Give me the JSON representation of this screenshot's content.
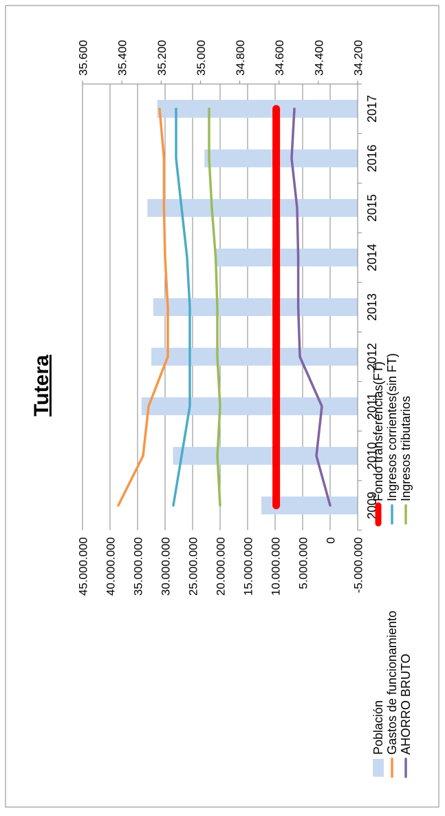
{
  "chart_data": {
    "type": "bar",
    "title": "Tutera",
    "categories": [
      "2009",
      "2010",
      "2011",
      "2012",
      "2013",
      "2014",
      "2015",
      "2016",
      "2017"
    ],
    "y_left": {
      "min": -5000000,
      "max": 45000000,
      "ticks": [
        -5000000,
        0,
        5000000,
        10000000,
        15000000,
        20000000,
        25000000,
        30000000,
        35000000,
        40000000,
        45000000
      ],
      "tick_labels": [
        "-5.000.000",
        "0",
        "5.000.000",
        "10.000.000",
        "15.000.000",
        "20.000.000",
        "25.000.000",
        "30.000.000",
        "35.000.000",
        "40.000.000",
        "45.000.000"
      ]
    },
    "y_right": {
      "min": 34200,
      "max": 35600,
      "ticks": [
        34200,
        34400,
        34600,
        34800,
        35000,
        35200,
        35400,
        35600
      ],
      "tick_labels": [
        "34.200",
        "34.400",
        "34.600",
        "34.800",
        "35.000",
        "35.200",
        "35.400",
        "35.600"
      ]
    },
    "grid": true,
    "legend_position": "bottom",
    "bars": {
      "name": "Población",
      "axis": "right",
      "color": "#c6d9f1",
      "values": [
        34690,
        35140,
        35300,
        35250,
        35240,
        34920,
        35270,
        34980,
        35220
      ]
    },
    "series": [
      {
        "name": "Fondo transferencias(FT)",
        "axis": "left",
        "color": "#ff0000",
        "width": "thick",
        "values": [
          9800000,
          9800000,
          9800000,
          9800000,
          9800000,
          9800000,
          9800000,
          9800000,
          9800000
        ]
      },
      {
        "name": "Gastos de funcionamiento",
        "axis": "left",
        "color": "#f79646",
        "values": [
          38500000,
          34000000,
          33000000,
          29500000,
          29500000,
          30000000,
          30200000,
          30200000,
          31000000
        ]
      },
      {
        "name": "Ingresos corrientes(sin FT)",
        "axis": "left",
        "color": "#4bacc6",
        "values": [
          28500000,
          27000000,
          25500000,
          25500000,
          25500000,
          26000000,
          27000000,
          28000000,
          28000000
        ]
      },
      {
        "name": "AHORRO BRUTO",
        "axis": "left",
        "color": "#8064a2",
        "values": [
          0,
          2500000,
          1500000,
          5500000,
          5800000,
          5800000,
          6000000,
          7000000,
          6500000
        ]
      },
      {
        "name": "Ingresos tributarios",
        "axis": "left",
        "color": "#9bbb59",
        "values": [
          20000000,
          20500000,
          20000000,
          20500000,
          20500000,
          20800000,
          21500000,
          22000000,
          22000000
        ]
      }
    ],
    "legend_entries": [
      {
        "name": "Población",
        "marker": "box",
        "color": "#c6d9f1"
      },
      {
        "name": "Fondo transferencias(FT)",
        "marker": "line",
        "color": "#ff0000"
      },
      {
        "name": "Gastos de funcionamiento",
        "marker": "line",
        "color": "#f79646"
      },
      {
        "name": "Ingresos corrientes(sin FT)",
        "marker": "line",
        "color": "#4bacc6"
      },
      {
        "name": "AHORRO BRUTO",
        "marker": "line",
        "color": "#8064a2"
      },
      {
        "name": "Ingresos tributarios",
        "marker": "line",
        "color": "#9bbb59"
      }
    ]
  }
}
